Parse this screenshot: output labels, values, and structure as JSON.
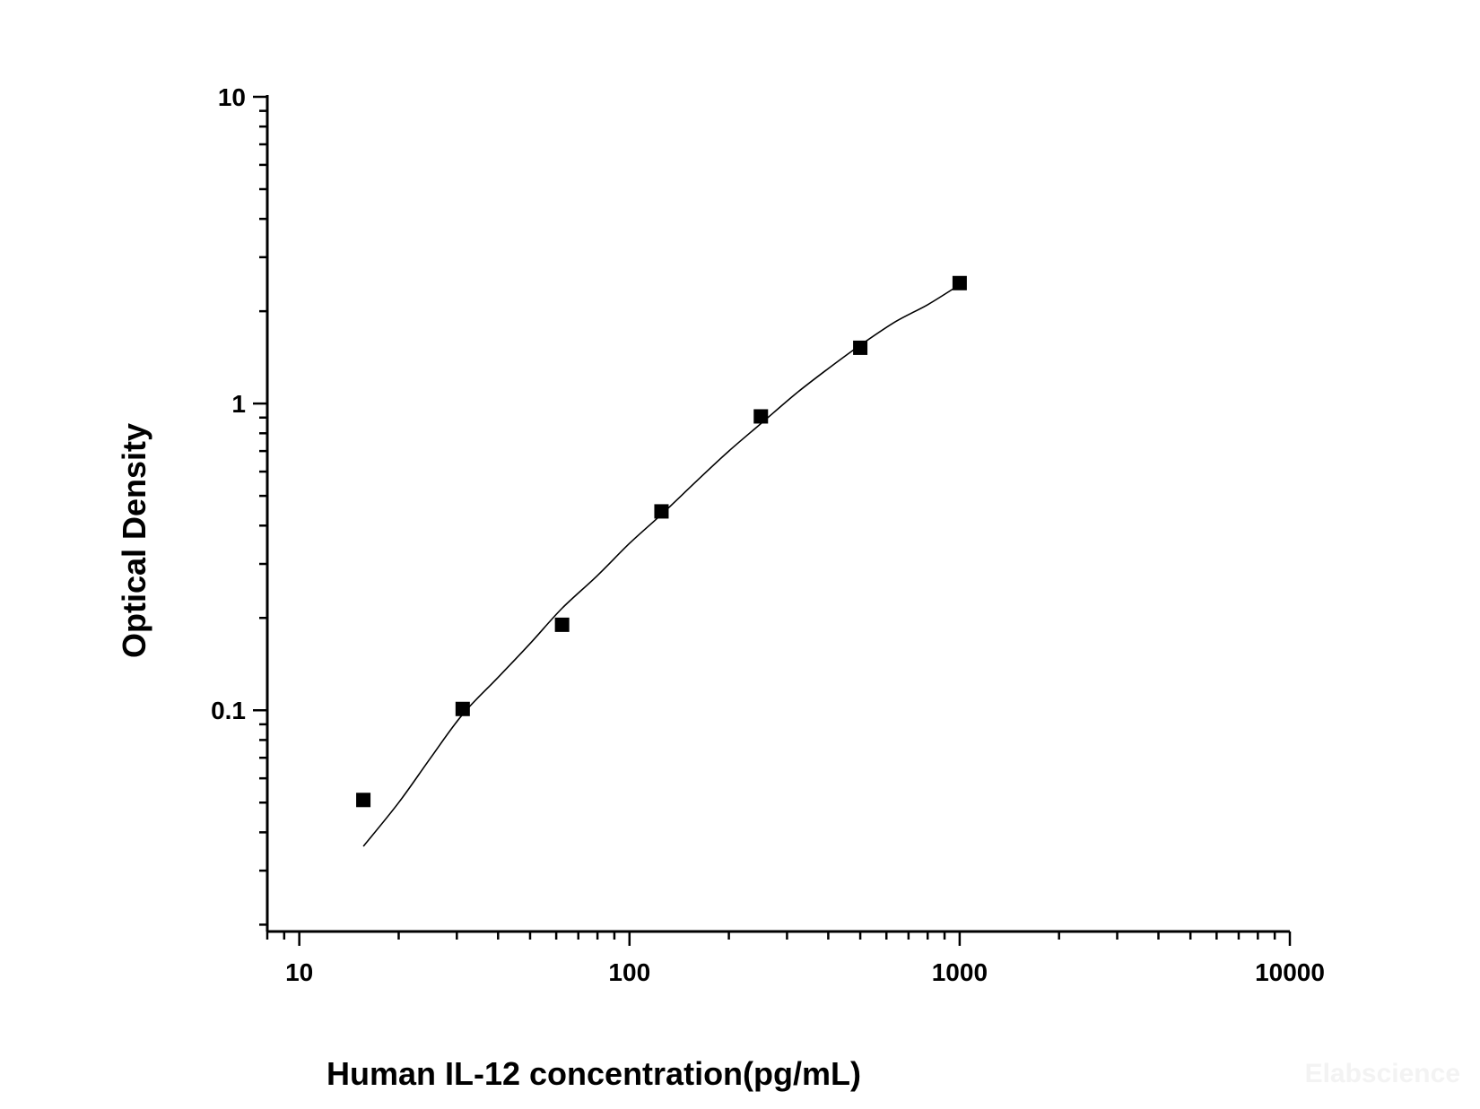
{
  "chart_data": {
    "type": "scatter",
    "title": "",
    "xlabel": "Human IL-12 concentration(pg/mL)",
    "ylabel": "Optical Density",
    "x_scale": "log",
    "y_scale": "log",
    "xlim": [
      8,
      10000
    ],
    "ylim": [
      0.019,
      10
    ],
    "x_ticks": [
      {
        "value": 10,
        "label": "10"
      },
      {
        "value": 100,
        "label": "100"
      },
      {
        "value": 1000,
        "label": "1000"
      },
      {
        "value": 10000,
        "label": "10000"
      }
    ],
    "y_ticks": [
      {
        "value": 0.1,
        "label": "0.1"
      },
      {
        "value": 1,
        "label": "1"
      },
      {
        "value": 10,
        "label": "10"
      }
    ],
    "grid": false,
    "legend": "none",
    "series": [
      {
        "kind": "points",
        "marker": "square",
        "color": "#000000",
        "x": [
          15.63,
          31.25,
          62.5,
          125,
          250,
          500,
          1000
        ],
        "y": [
          0.051,
          0.101,
          0.19,
          0.445,
          0.908,
          1.52,
          2.47
        ]
      },
      {
        "kind": "fit-curve",
        "color": "#000000",
        "x": [
          15.63,
          20,
          25,
          31.25,
          40,
          50,
          62.5,
          80,
          100,
          125,
          160,
          200,
          250,
          320,
          400,
          500,
          640,
          800,
          1000
        ],
        "y": [
          0.036,
          0.05,
          0.07,
          0.097,
          0.128,
          0.165,
          0.215,
          0.275,
          0.35,
          0.435,
          0.56,
          0.7,
          0.86,
          1.08,
          1.3,
          1.55,
          1.85,
          2.1,
          2.44
        ]
      }
    ]
  },
  "watermark": "Elabscience"
}
